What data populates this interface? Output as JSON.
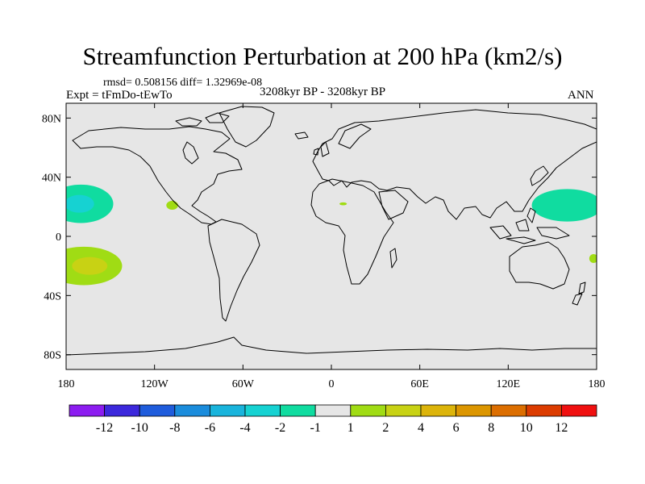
{
  "figure": {
    "title": "Streamfunction Perturbation at 200 hPa (km2/s)",
    "stats": "rmsd= 0.508156 diff= 1.32969e-08",
    "experiment": "Expt = tFmDo-tEwTo",
    "period": "3208kyr BP - 3208kyr BP",
    "season": "ANN"
  },
  "map": {
    "projection": "cylindrical-equidistant",
    "lon_range": [
      -180,
      180
    ],
    "lat_range": [
      -90,
      90
    ],
    "lon_ticks": [
      {
        "value": -180,
        "label": "180"
      },
      {
        "value": -120,
        "label": "120W"
      },
      {
        "value": -60,
        "label": "60W"
      },
      {
        "value": 0,
        "label": "0"
      },
      {
        "value": 60,
        "label": "60E"
      },
      {
        "value": 120,
        "label": "120E"
      },
      {
        "value": 180,
        "label": "180"
      }
    ],
    "lat_ticks": [
      {
        "value": 80,
        "label": "80N"
      },
      {
        "value": 40,
        "label": "40N"
      },
      {
        "value": 0,
        "label": "0"
      },
      {
        "value": -40,
        "label": "40S"
      },
      {
        "value": -80,
        "label": "80S"
      }
    ],
    "background_color": "#e6e6e6",
    "coastline_color": "#000000"
  },
  "colorbar": {
    "colors": [
      "#8c1cf0",
      "#3c28dc",
      "#1f5cdc",
      "#1a8cdc",
      "#19b4dc",
      "#16d2d2",
      "#10dca0",
      "#e6e6e6",
      "#a0dc14",
      "#c8d214",
      "#dcb40a",
      "#dc9600",
      "#dc6e00",
      "#dc3c00",
      "#f01010"
    ],
    "labels": [
      "-12",
      "-10",
      "-8",
      "-6",
      "-4",
      "-2",
      "-1",
      "1",
      "2",
      "4",
      "6",
      "8",
      "10",
      "12"
    ]
  },
  "chart_data": {
    "type": "map-contour",
    "variable": "Streamfunction Perturbation at 200 hPa",
    "units": "km2/s",
    "levels": [
      -12,
      -10,
      -8,
      -6,
      -4,
      -2,
      -1,
      1,
      2,
      4,
      6,
      8,
      10,
      12
    ],
    "anomalies": [
      {
        "name": "north-pacific-west-negative",
        "lon": -170,
        "lat": 22,
        "value_range": [
          -4,
          -1
        ]
      },
      {
        "name": "north-pacific-west-core",
        "lon": -171,
        "lat": 22,
        "value_range": [
          -4,
          -2
        ]
      },
      {
        "name": "south-pacific-positive",
        "lon": -168,
        "lat": -20,
        "value_range": [
          1,
          4
        ]
      },
      {
        "name": "south-pacific-core",
        "lon": -164,
        "lat": -20,
        "value_range": [
          2,
          4
        ]
      },
      {
        "name": "mexico-positive",
        "lon": -108,
        "lat": 21,
        "value_range": [
          1,
          2
        ]
      },
      {
        "name": "africa-positive",
        "lon": 8,
        "lat": 22,
        "value_range": [
          1,
          2
        ]
      },
      {
        "name": "west-pacific-negative",
        "lon": 160,
        "lat": 21,
        "value_range": [
          -2,
          -1
        ]
      },
      {
        "name": "eastern-edge-positive",
        "lon": 178,
        "lat": -15,
        "value_range": [
          1,
          2
        ]
      }
    ]
  }
}
